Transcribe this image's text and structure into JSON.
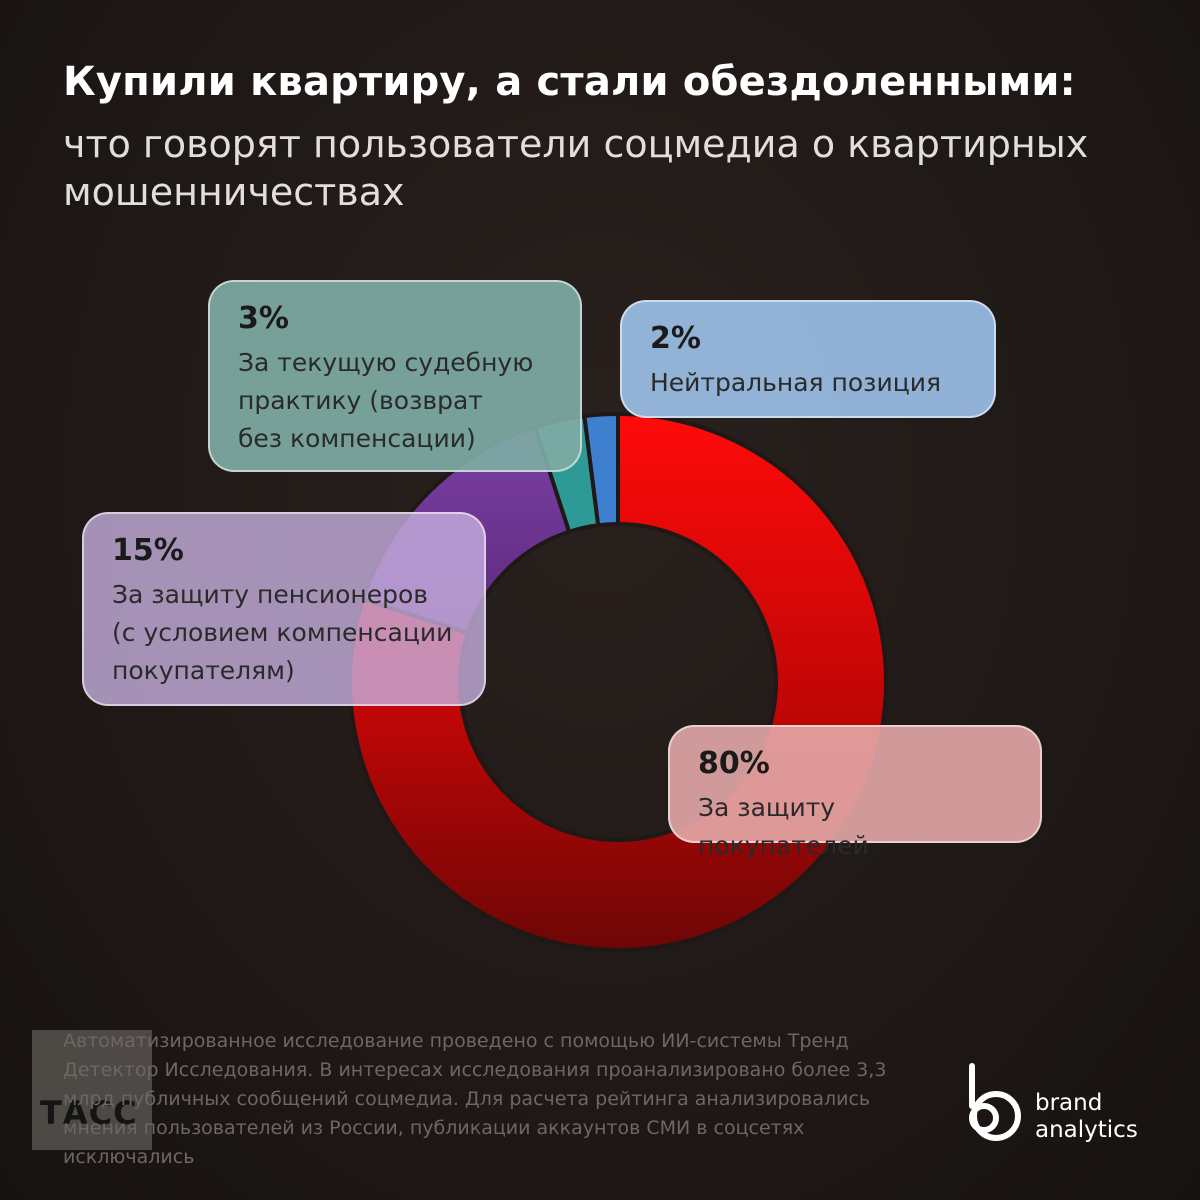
{
  "header": {
    "title": "Купили квартиру, а стали обездоленными:",
    "subtitle": "что говорят пользователи соцмедиа о квартирных мошенничествах"
  },
  "chart_data": {
    "type": "pie",
    "variant": "donut",
    "title": "Купили квартиру, а стали обездоленными:",
    "subtitle": "что говорят пользователи соцмедиа о квартирных мошенничествах",
    "slices": [
      {
        "label": "За защиту покупателей",
        "value": 80,
        "value_label": "80%",
        "color": "#e00000"
      },
      {
        "label": "За защиту пенсионеров (с условием компенсации покупателям)",
        "value": 15,
        "value_label": "15%",
        "color": "#7a3f9c"
      },
      {
        "label": "За текущую судебную практику (возврат без компенсации)",
        "value": 3,
        "value_label": "3%",
        "color": "#2e9a96"
      },
      {
        "label": "Нейтральная позиция",
        "value": 2,
        "value_label": "2%",
        "color": "#3f7fd0"
      }
    ]
  },
  "callouts": {
    "buyers": {
      "pct": "80%",
      "label": "За защиту покупателей"
    },
    "pension": {
      "pct": "15%",
      "label": "За защиту пенсионеров\n(с условием компенсации\nпокупателям)"
    },
    "court": {
      "pct": "3%",
      "label": "За текущую судебную\nпрактику (возврат\nбез компенсации)"
    },
    "neutral": {
      "pct": "2%",
      "label": "Нейтральная позиция"
    }
  },
  "footnote": "Автоматизированное исследование проведено с помощью ИИ-системы Тренд Детектор Исследования.  В интересах исследования проанализировано более 3,3 млрд публичных сообщений соцмедиа. Для расчета рейтинга анализировались мнения пользователей из России, публикации аккаунтов СМИ в соцсетях исключались",
  "watermark": {
    "text": "ТАСС"
  },
  "brand": {
    "line1": "brand",
    "line2": "analytics",
    "logo": "brand-analytics-logo"
  }
}
